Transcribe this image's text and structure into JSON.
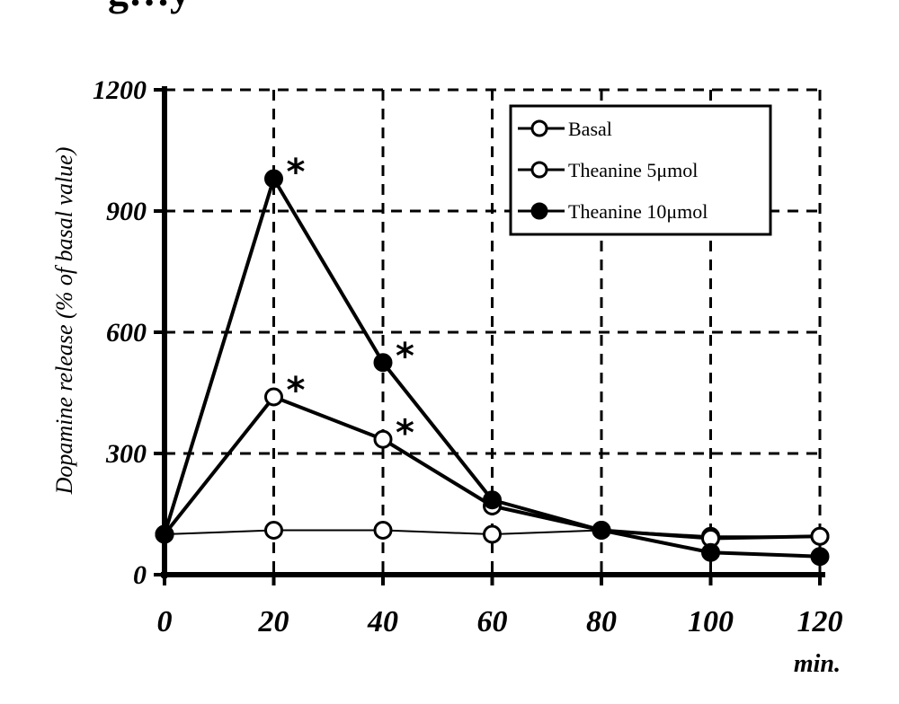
{
  "header_fragment": "g…y",
  "chart_data": {
    "type": "line",
    "x": [
      0,
      20,
      40,
      60,
      80,
      100,
      120
    ],
    "x_ticks": [
      "0",
      "20",
      "40",
      "60",
      "80",
      "100",
      "120"
    ],
    "x_unit": "min.",
    "ylabel": "Dopamine release (% of basal value)",
    "y_ticks": [
      "0",
      "300",
      "600",
      "900",
      "1200"
    ],
    "xlim": [
      0,
      120
    ],
    "ylim": [
      0,
      1200
    ],
    "grid": true,
    "legend_position": "top-right",
    "series": [
      {
        "name": "Basal",
        "marker": "open-circle",
        "line": "thin",
        "values": [
          100,
          110,
          110,
          100,
          110,
          95,
          95
        ]
      },
      {
        "name": "Theanine 5μmol",
        "marker": "open-circle",
        "line": "thick",
        "values": [
          100,
          440,
          335,
          170,
          110,
          90,
          95
        ]
      },
      {
        "name": "Theanine 10μmol",
        "marker": "filled-circle",
        "line": "thick",
        "values": [
          100,
          980,
          525,
          185,
          110,
          55,
          45
        ]
      }
    ],
    "annotations": [
      {
        "text": "*",
        "x": 20,
        "series": "Theanine 10μmol"
      },
      {
        "text": "*",
        "x": 20,
        "series": "Theanine 5μmol"
      },
      {
        "text": "*",
        "x": 40,
        "series": "Theanine 10μmol"
      },
      {
        "text": "*",
        "x": 40,
        "series": "Theanine 5μmol"
      }
    ]
  }
}
